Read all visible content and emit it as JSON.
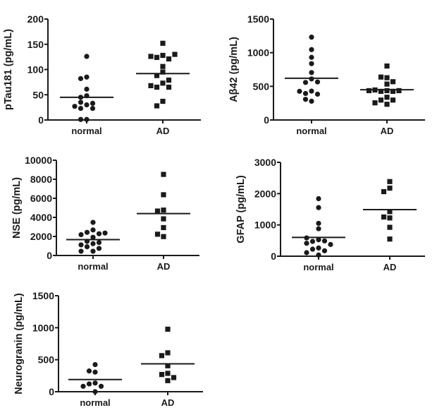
{
  "chart_data": [
    {
      "type": "scatter",
      "ylabel": "pTau181 (pg/mL)",
      "categories": [
        "normal",
        "AD"
      ],
      "ylim": [
        0,
        200
      ],
      "yticks": [
        0,
        50,
        100,
        150,
        200
      ],
      "grid": false,
      "series": [
        {
          "category": "normal",
          "marker": "circle",
          "mean": 45,
          "values": [
            126,
            85,
            82,
            61,
            48,
            45,
            30,
            35,
            33,
            23,
            23,
            27,
            1,
            1
          ]
        },
        {
          "category": "AD",
          "marker": "square",
          "mean": 92,
          "values": [
            152,
            128,
            124,
            121,
            126,
            130,
            106,
            95,
            88,
            73,
            79,
            65,
            65,
            68,
            37,
            28
          ]
        }
      ]
    },
    {
      "type": "scatter",
      "ylabel": "Aβ42 (pg/mL)",
      "categories": [
        "normal",
        "AD"
      ],
      "ylim": [
        0,
        1500
      ],
      "yticks": [
        0,
        500,
        1000,
        1500
      ],
      "grid": false,
      "series": [
        {
          "category": "normal",
          "marker": "circle",
          "mean": 620,
          "values": [
            1231,
            1046,
            931,
            837,
            705,
            610,
            558,
            565,
            429,
            394,
            384,
            426,
            279,
            307
          ]
        },
        {
          "category": "AD",
          "marker": "square",
          "mean": 450,
          "values": [
            802,
            628,
            638,
            569,
            534,
            436,
            426,
            426,
            446,
            436,
            436,
            338,
            296,
            296,
            234,
            255
          ]
        }
      ]
    },
    {
      "type": "scatter",
      "ylabel": "NSE (pg/mL)",
      "categories": [
        "normal",
        "AD"
      ],
      "ylim": [
        0,
        10000
      ],
      "yticks": [
        0,
        2000,
        4000,
        6000,
        8000,
        10000
      ],
      "grid": false,
      "series": [
        {
          "category": "normal",
          "marker": "circle",
          "mean": 1670,
          "values": [
            3474,
            2680,
            2431,
            2283,
            2184,
            2357,
            1911,
            1489,
            1241,
            1365,
            1117,
            918,
            744,
            447,
            447
          ]
        },
        {
          "category": "AD",
          "marker": "square",
          "mean": 4400,
          "values": [
            8511,
            6377,
            4764,
            4665,
            3846,
            2928,
            1985,
            2233
          ]
        }
      ]
    },
    {
      "type": "scatter",
      "ylabel": "GFAP (pg/mL)",
      "categories": [
        "normal",
        "AD"
      ],
      "ylim": [
        0,
        3000
      ],
      "yticks": [
        0,
        1000,
        2000,
        3000
      ],
      "grid": false,
      "series": [
        {
          "category": "normal",
          "marker": "circle",
          "mean": 600,
          "values": [
            1838,
            1553,
            1050,
            878,
            525,
            473,
            488,
            585,
            413,
            375,
            263,
            225,
            173,
            113,
            38
          ]
        },
        {
          "category": "AD",
          "marker": "square",
          "mean": 1490,
          "values": [
            2385,
            2175,
            2063,
            1425,
            1223,
            1253,
            923,
            548
          ]
        }
      ]
    },
    {
      "type": "scatter",
      "ylabel": "Neurogranin (pg/mL)",
      "categories": [
        "normal",
        "AD"
      ],
      "ylim": [
        0,
        1500
      ],
      "yticks": [
        0,
        500,
        1000,
        1500
      ],
      "grid": false,
      "series": [
        {
          "category": "normal",
          "marker": "circle",
          "mean": 190,
          "values": [
            424,
            306,
            324,
            136,
            122,
            85,
            85,
            0
          ]
        },
        {
          "category": "AD",
          "marker": "square",
          "mean": 435,
          "values": [
            977,
            608,
            564,
            405,
            287,
            269,
            221,
            173
          ]
        }
      ]
    }
  ],
  "colors": {
    "marker": "#1a1a1a",
    "axis": "#1a1a1a"
  }
}
